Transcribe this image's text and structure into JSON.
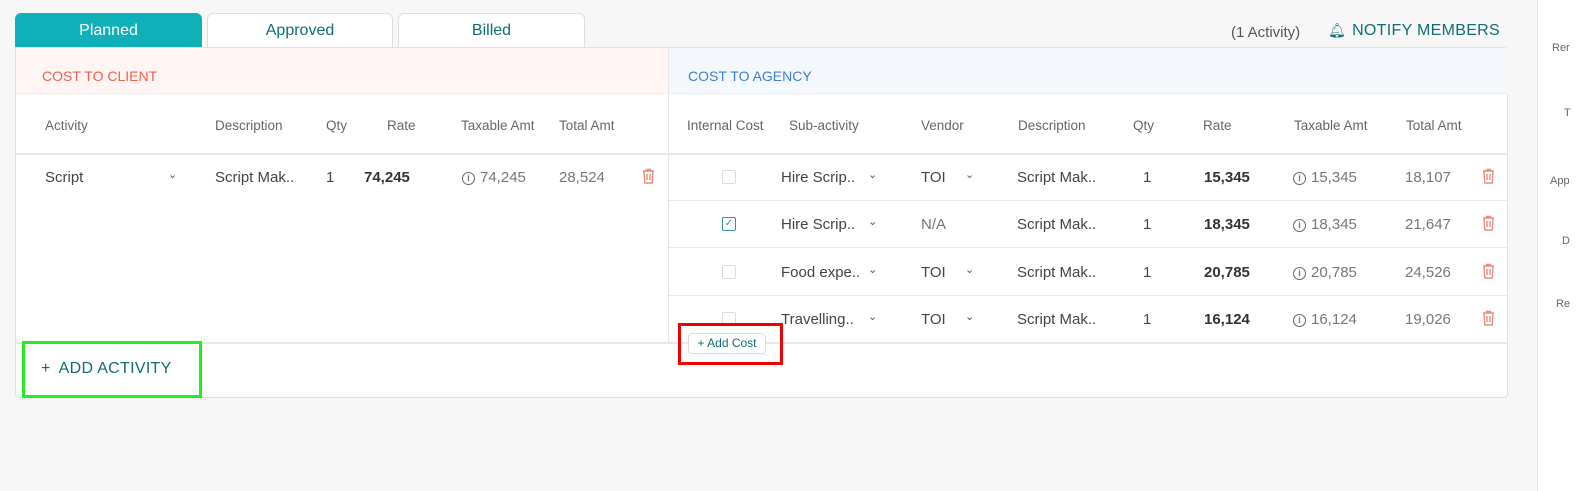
{
  "tabs": [
    {
      "label": "Planned",
      "active": true
    },
    {
      "label": "Approved"
    },
    {
      "label": "Billed"
    }
  ],
  "activity_count": "(1 Activity)",
  "notify_label": "NOTIFY MEMBERS",
  "client": {
    "title": "COST TO CLIENT",
    "columns": [
      "Activity",
      "Description",
      "Qty",
      "Rate",
      "Taxable Amt",
      "Total Amt"
    ],
    "rows": [
      {
        "activity": "Script",
        "description": "Script Mak..",
        "qty": "1",
        "rate": "74,245",
        "taxable": "74,245",
        "total": "28,524"
      }
    ],
    "add_label": "ADD ACTIVITY"
  },
  "agency": {
    "title": "COST TO AGENCY",
    "columns": [
      "Internal Cost",
      "Sub-activity",
      "Vendor",
      "Description",
      "Qty",
      "Rate",
      "Taxable Amt",
      "Total Amt"
    ],
    "rows": [
      {
        "internal": false,
        "sub": "Hire Scrip..",
        "vendor": "TOI",
        "description": "Script Mak..",
        "qty": "1",
        "rate": "15,345",
        "taxable": "15,345",
        "total": "18,107"
      },
      {
        "internal": true,
        "sub": "Hire Scrip..",
        "vendor": "N/A",
        "description": "Script Mak..",
        "qty": "1",
        "rate": "18,345",
        "taxable": "18,345",
        "total": "21,647"
      },
      {
        "internal": false,
        "sub": "Food expe..",
        "vendor": "TOI",
        "description": "Script Mak..",
        "qty": "1",
        "rate": "20,785",
        "taxable": "20,785",
        "total": "24,526"
      },
      {
        "internal": false,
        "sub": "Travelling..",
        "vendor": "TOI",
        "description": "Script Mak..",
        "qty": "1",
        "rate": "16,124",
        "taxable": "16,124",
        "total": "19,026"
      }
    ],
    "add_label": "+ Add Cost"
  },
  "sidebar": [
    "Rer",
    "T",
    "App",
    "D",
    "Re"
  ],
  "colors": {
    "accent": "#0fb0b8",
    "client": "#f0604a",
    "agency": "#3a7fd0",
    "trash": "#f08a7a",
    "highlight_green": "#22ee22",
    "highlight_red": "#ee0000"
  }
}
